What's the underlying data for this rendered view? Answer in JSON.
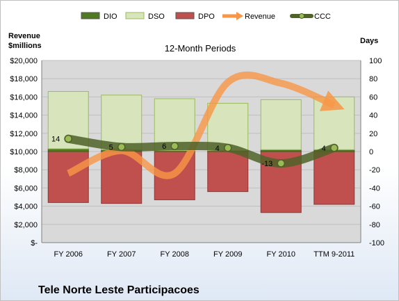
{
  "chart_data": {
    "type": "bar",
    "title": "12-Month Periods",
    "company": "Tele Norte Leste Participacoes",
    "left_axis_label": [
      "Revenue",
      "$millions"
    ],
    "right_axis_label": "Days",
    "categories": [
      "FY 2006",
      "FY 2007",
      "FY 2008",
      "FY 2009",
      "FY 2010",
      "TTM 9-2011"
    ],
    "left_ylim": [
      0,
      20000
    ],
    "left_ticks": [
      "$-",
      "$2,000",
      "$4,000",
      "$6,000",
      "$8,000",
      "$10,000",
      "$12,000",
      "$14,000",
      "$16,000",
      "$18,000",
      "$20,000"
    ],
    "right_ylim": [
      -100,
      100
    ],
    "right_ticks": [
      "-100",
      "-80",
      "-60",
      "-40",
      "-20",
      "0",
      "20",
      "40",
      "60",
      "80",
      "100"
    ],
    "legend": [
      "DIO",
      "DSO",
      "DPO",
      "Revenue",
      "CCC"
    ],
    "colors": {
      "DIO": "#4f7a22",
      "DSO": "#d7e4bc",
      "DPO": "#c0504d",
      "Revenue": "#f79646",
      "CCC": "#4f6228",
      "plot_bg": "#d9d9d9"
    },
    "series": [
      {
        "name": "DIO",
        "axis": "right",
        "values": [
          3,
          2,
          1,
          1,
          2,
          2
        ]
      },
      {
        "name": "DSO",
        "axis": "right",
        "values": [
          63,
          60,
          57,
          52,
          55,
          58
        ]
      },
      {
        "name": "DPO",
        "axis": "right",
        "values": [
          -56,
          -57,
          -53,
          -44,
          -67,
          -58
        ]
      },
      {
        "name": "Revenue",
        "axis": "left",
        "values": [
          7600,
          10100,
          7600,
          17600,
          17500,
          15100
        ]
      },
      {
        "name": "CCC",
        "axis": "right",
        "values": [
          14,
          5,
          6,
          4,
          -13,
          4
        ]
      }
    ],
    "ccc_labels": [
      "14",
      "5",
      "6",
      "4",
      "-13",
      "4"
    ]
  }
}
